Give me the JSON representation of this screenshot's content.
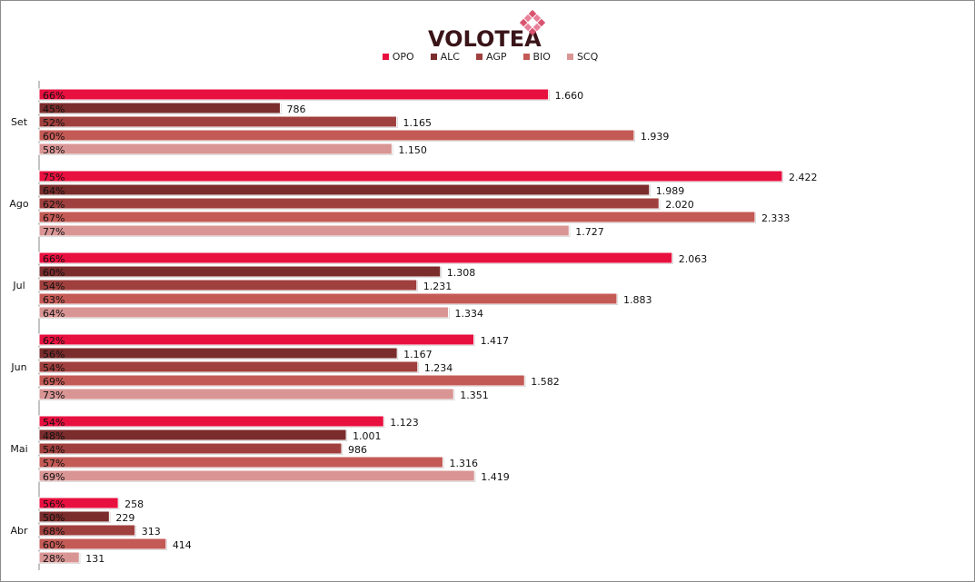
{
  "brand": {
    "logo_text": "VOLOTEA"
  },
  "chart_data": {
    "type": "bar",
    "orientation": "horizontal",
    "title": "",
    "categories": [
      "Set",
      "Ago",
      "Jul",
      "Jun",
      "Mai",
      "Abr"
    ],
    "legend_position": "top",
    "grid": false,
    "xlim": [
      0,
      2500
    ],
    "series": [
      {
        "name": "OPO",
        "color": "#E8103F",
        "values": [
          1660,
          2422,
          2063,
          1417,
          1123,
          258
        ],
        "value_labels": [
          "1.660",
          "2.422",
          "2.063",
          "1.417",
          "1.123",
          "258"
        ],
        "pct_labels": [
          "66%",
          "75%",
          "66%",
          "62%",
          "54%",
          "56%"
        ]
      },
      {
        "name": "ALC",
        "color": "#7B2C2C",
        "values": [
          786,
          1989,
          1308,
          1167,
          1001,
          229
        ],
        "value_labels": [
          "786",
          "1.989",
          "1.308",
          "1.167",
          "1.001",
          "229"
        ],
        "pct_labels": [
          "45%",
          "64%",
          "60%",
          "56%",
          "48%",
          "50%"
        ]
      },
      {
        "name": "AGP",
        "color": "#A0403E",
        "values": [
          1165,
          2020,
          1231,
          1234,
          986,
          313
        ],
        "value_labels": [
          "1.165",
          "2.020",
          "1.231",
          "1.234",
          "986",
          "313"
        ],
        "pct_labels": [
          "52%",
          "62%",
          "54%",
          "54%",
          "54%",
          "68%"
        ]
      },
      {
        "name": "BIO",
        "color": "#C45A55",
        "values": [
          1939,
          2333,
          1883,
          1582,
          1316,
          414
        ],
        "value_labels": [
          "1.939",
          "2.333",
          "1.883",
          "1.582",
          "1.316",
          "414"
        ],
        "pct_labels": [
          "60%",
          "67%",
          "63%",
          "69%",
          "57%",
          "60%"
        ]
      },
      {
        "name": "SCQ",
        "color": "#D99594",
        "values": [
          1150,
          1727,
          1334,
          1351,
          1419,
          131
        ],
        "value_labels": [
          "1.150",
          "1.727",
          "1.334",
          "1.351",
          "1.419",
          "131"
        ],
        "pct_labels": [
          "58%",
          "77%",
          "64%",
          "73%",
          "69%",
          "28%"
        ]
      }
    ]
  }
}
